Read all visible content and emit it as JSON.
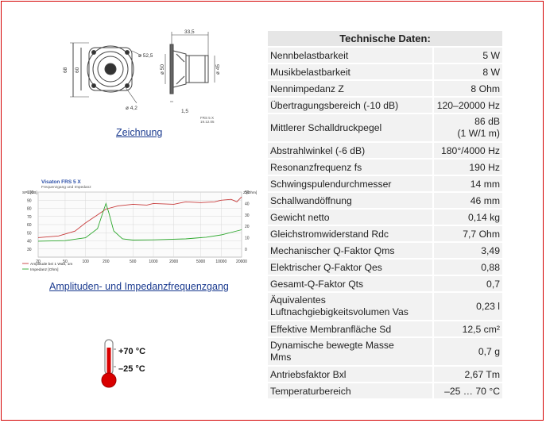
{
  "zeichnung": {
    "link": "Zeichnung",
    "dim_top": "33,5",
    "dim_d525": "ø 52,5",
    "dim_68": "68",
    "dim_60": "60",
    "dim_d42": "ø 4,2",
    "dim_d50": "ø 50",
    "dim_d45": "ø 45",
    "dim_15": "1,5",
    "stamp1": "FRS 5 X",
    "stamp2": "19.12.05"
  },
  "graph": {
    "title": "Visaton FRS 5 X",
    "subtitle": "Frequenzgang und Impedanz",
    "y_left_label": "SPL [dB]",
    "y_right_label": "Z [Ohm]",
    "y_left_ticks": [
      "100",
      "90",
      "80",
      "70",
      "60",
      "50",
      "40",
      "30"
    ],
    "y_right_ticks": [
      "50",
      "40",
      "30",
      "20",
      "10",
      "0"
    ],
    "x_ticks": [
      "20",
      "50",
      "100",
      "200",
      "500",
      "1000",
      "2000",
      "5000",
      "10000",
      "20000"
    ],
    "legend1": "Amplitude bei 1 Watt, 1m",
    "legend2": "Impedanz [Ohm]",
    "link": "Amplituden- und Impedanzfrequenzgang",
    "colors": {
      "spl": "#c83c3c",
      "imp": "#2ea82e"
    }
  },
  "temperature": {
    "max": "+70 °C",
    "min": "–25 °C"
  },
  "tech": {
    "header": "Technische Daten:",
    "rows": [
      {
        "label": "Nennbelastbarkeit",
        "value": "5 W"
      },
      {
        "label": "Musikbelastbarkeit",
        "value": "8 W"
      },
      {
        "label": "Nennimpedanz Z",
        "value": "8 Ohm"
      },
      {
        "label": "Übertragungsbereich (-10 dB)",
        "value": "120–20000 Hz"
      },
      {
        "label": "Mittlerer Schalldruckpegel",
        "value": "86 dB",
        "value2": "(1 W/1 m)"
      },
      {
        "label": "Abstrahlwinkel (-6 dB)",
        "value": "180°/4000 Hz"
      },
      {
        "label": "Resonanzfrequenz fs",
        "value": "190 Hz"
      },
      {
        "label": "Schwingspulendurchmesser",
        "value": "14 mm"
      },
      {
        "label": "Schallwandöffnung",
        "value": "46 mm"
      },
      {
        "label": "Gewicht netto",
        "value": "0,14 kg"
      },
      {
        "label": "Gleichstromwiderstand Rdc",
        "value": "7,7 Ohm"
      },
      {
        "label": "Mechanischer Q-Faktor Qms",
        "value": "3,49"
      },
      {
        "label": "Elektrischer Q-Faktor Qes",
        "value": "0,88"
      },
      {
        "label": "Gesamt-Q-Faktor Qts",
        "value": "0,7"
      },
      {
        "label": "Äquivalentes",
        "label2": "Luftnachgiebigkeitsvolumen Vas",
        "value": "0,23 l"
      },
      {
        "label": "Effektive Membranfläche Sd",
        "value": "12,5 cm²"
      },
      {
        "label": "Dynamische bewegte Masse",
        "label2": "Mms",
        "value": "0,7 g"
      },
      {
        "label": "Antriebsfaktor Bxl",
        "value": "2,67 Tm"
      },
      {
        "label": "Temperaturbereich",
        "value": "–25 … 70 °C"
      }
    ]
  }
}
